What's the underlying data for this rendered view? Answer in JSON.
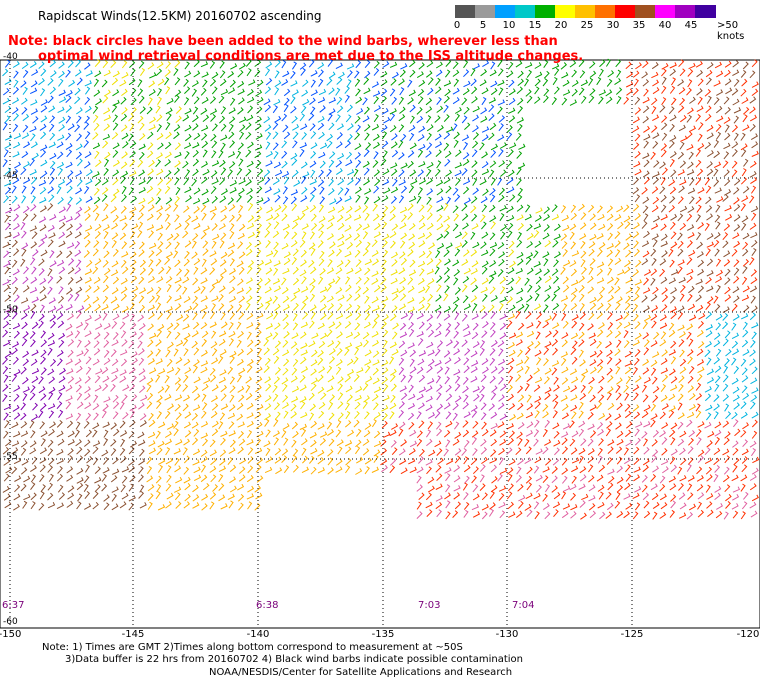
{
  "header": {
    "title": "Rapidscat Winds(12.5KM) 20160702 ascending",
    "note_line1": "Note: black circles have been added to the wind barbs, wherever less than",
    "note_line2": "optimal wind retrieval conditions are met due to the ISS altitude changes."
  },
  "legend": {
    "labels": [
      "0",
      "5",
      "10",
      "15",
      "20",
      "25",
      "30",
      "35",
      "40",
      "45",
      ">50 knots"
    ],
    "colors": [
      "#555555",
      "#9a9a9a",
      "#00a0ff",
      "#00c8c8",
      "#00b000",
      "#ffff00",
      "#ffc000",
      "#ff7000",
      "#ff0000",
      "#a05020",
      "#ff00ff",
      "#a000c0",
      "#4000a0"
    ]
  },
  "map": {
    "longitude_labels": [
      "-150",
      "-145",
      "-140",
      "-135",
      "-130",
      "-125",
      "-120"
    ],
    "latitude_labels": [
      "-40",
      "-45",
      "-50",
      "-55",
      "-60"
    ],
    "time_labels": [
      "6:37",
      "6:38",
      "7:03",
      "7:04"
    ]
  },
  "footer": {
    "line1": "Note: 1) Times are GMT 2)Times along bottom correspond to measurement at ~50S",
    "line2": "3)Data buffer is 22 hrs from 20160702 4) Black wind barbs indicate possible contamination",
    "line3": "NOAA/NESDIS/Center for Satellite Applications and Research"
  }
}
